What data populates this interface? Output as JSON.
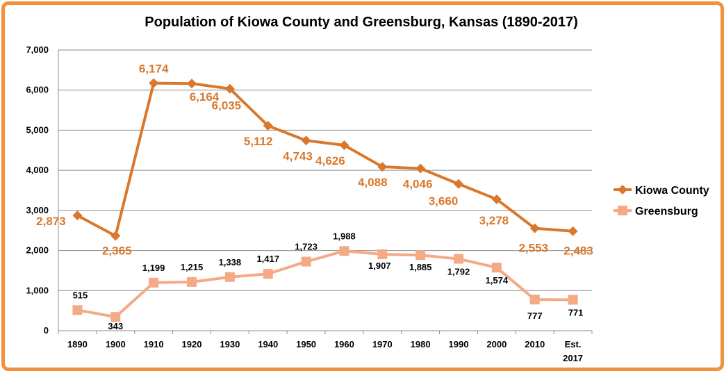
{
  "chart_data": {
    "type": "line",
    "title": "Population of Kiowa County and Greensburg, Kansas (1890-2017)",
    "xlabel": "",
    "ylabel": "",
    "ylim": [
      0,
      7000
    ],
    "yticks": [
      "0",
      "1,000",
      "2,000",
      "3,000",
      "4,000",
      "5,000",
      "6,000",
      "7,000"
    ],
    "categories": [
      "1890",
      "1900",
      "1910",
      "1920",
      "1930",
      "1940",
      "1950",
      "1960",
      "1970",
      "1980",
      "1990",
      "2000",
      "2010",
      "Est. 2017"
    ],
    "grid": true,
    "legend_position": "right",
    "series": [
      {
        "name": "Kiowa County",
        "color": "#d9782c",
        "values": [
          2873,
          2365,
          6174,
          6164,
          6035,
          5112,
          4743,
          4626,
          4088,
          4046,
          3660,
          3278,
          2553,
          2483
        ],
        "labels": [
          "2,873",
          "2,365",
          "6,174",
          "6,164",
          "6,035",
          "5,112",
          "4,743",
          "4,626",
          "4,088",
          "4,046",
          "3,660",
          "3,278",
          "2,553",
          "2,483"
        ]
      },
      {
        "name": "Greensburg",
        "color": "#f4a987",
        "values": [
          515,
          343,
          1199,
          1215,
          1338,
          1417,
          1723,
          1988,
          1907,
          1885,
          1792,
          1574,
          777,
          771
        ],
        "labels": [
          "515",
          "343",
          "1,199",
          "1,215",
          "1,338",
          "1,417",
          "1,723",
          "1,988",
          "1,907",
          "1,885",
          "1,792",
          "1,574",
          "777",
          "771"
        ]
      }
    ]
  }
}
